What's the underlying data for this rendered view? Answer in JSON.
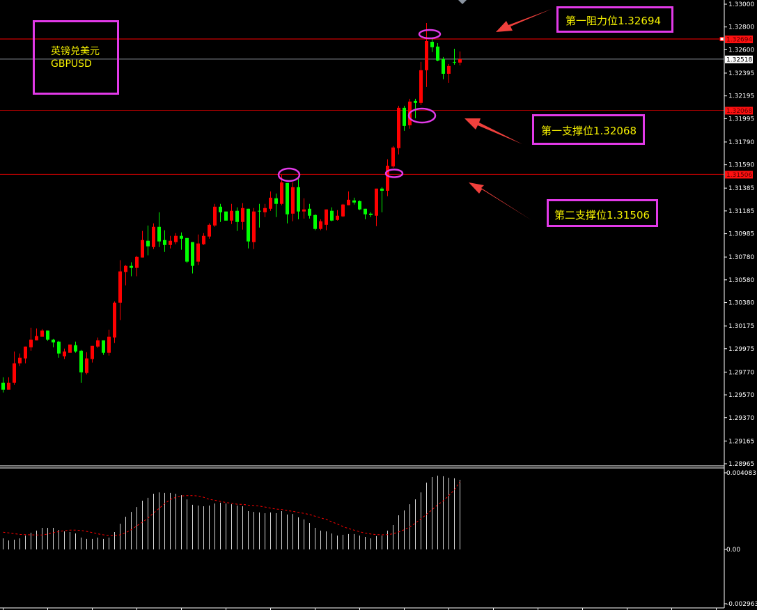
{
  "symbol_label": {
    "name_cn": "英镑兑美元",
    "symbol": "GBPUSD"
  },
  "annotations": {
    "resistance1": "第一阻力位1.32694",
    "support1": "第一支撑位1.32068",
    "support2": "第二支撑位1.31506"
  },
  "colors": {
    "background": "#000000",
    "bull_candle": "#ff0000",
    "bear_candle": "#00ff00",
    "resistance_line": "#ff0000",
    "support_line": "#d00000",
    "current_price_line": "#8a8f99",
    "highlight_circle": "#e23ae8",
    "annotation_text": "#f5f000",
    "arrow": "#f0403c",
    "macd_histogram": "#d8d8d8",
    "macd_signal": "#ff0000"
  },
  "chart_data": [
    {
      "type": "candlestick",
      "title": "",
      "ylim": [
        1.28965,
        1.33
      ],
      "y_ticks": [
        "1.33000",
        "1.32800",
        "1.32600",
        "1.32395",
        "1.32195",
        "1.31995",
        "1.31790",
        "1.31590",
        "1.31385",
        "1.31185",
        "1.30985",
        "1.30780",
        "1.30580",
        "1.30380",
        "1.30175",
        "1.29975",
        "1.29770",
        "1.29570",
        "1.29370",
        "1.29165",
        "1.28965"
      ],
      "price_tags": [
        {
          "value": "1.32694",
          "style": "red"
        },
        {
          "value": "1.32518",
          "style": "white"
        },
        {
          "value": "1.32068",
          "style": "red"
        },
        {
          "value": "1.31506",
          "style": "red"
        }
      ],
      "levels": {
        "resistance1": 1.32694,
        "current": 1.32518,
        "support1": 1.32068,
        "support2": 1.31506
      },
      "ohlc_format": [
        "open",
        "high",
        "low",
        "close"
      ],
      "candles": [
        [
          1.29676,
          1.29725,
          1.29591,
          1.29615
        ],
        [
          1.29615,
          1.29725,
          1.29615,
          1.29676
        ],
        [
          1.29676,
          1.29951,
          1.29658,
          1.29847
        ],
        [
          1.29847,
          1.29933,
          1.29823,
          1.29896
        ],
        [
          1.2989,
          1.29994,
          1.29847,
          1.29994
        ],
        [
          1.29988,
          1.30159,
          1.29957,
          1.30055
        ],
        [
          1.30049,
          1.30153,
          1.30049,
          1.30086
        ],
        [
          1.3008,
          1.30147,
          1.3008,
          1.30135
        ],
        [
          1.30135,
          1.30135,
          1.30043,
          1.30055
        ],
        [
          1.30055,
          1.30061,
          1.29988,
          1.30031
        ],
        [
          1.30037,
          1.30043,
          1.29896,
          1.29933
        ],
        [
          1.29909,
          1.29976,
          1.29884,
          1.29951
        ],
        [
          1.29939,
          1.30012,
          1.29939,
          1.30012
        ],
        [
          1.30006,
          1.30037,
          1.29939,
          1.29951
        ],
        [
          1.29957,
          1.29964,
          1.29676,
          1.29768
        ],
        [
          1.29762,
          1.29945,
          1.2975,
          1.2989
        ],
        [
          1.29884,
          1.3,
          1.29854,
          1.3
        ],
        [
          1.29994,
          1.30074,
          1.29982,
          1.30049
        ],
        [
          1.30049,
          1.30049,
          1.29921,
          1.29939
        ],
        [
          1.29939,
          1.30141,
          1.29915,
          1.3008
        ],
        [
          1.30074,
          1.30391,
          1.30025,
          1.30379
        ],
        [
          1.30379,
          1.30752,
          1.30226,
          1.30654
        ],
        [
          1.30648,
          1.30709,
          1.30532,
          1.30703
        ],
        [
          1.30703,
          1.30734,
          1.30611,
          1.30685
        ],
        [
          1.30685,
          1.30789,
          1.30611,
          1.30782
        ],
        [
          1.30776,
          1.31009,
          1.30776,
          1.30929
        ],
        [
          1.30923,
          1.31057,
          1.30795,
          1.30874
        ],
        [
          1.30868,
          1.31076,
          1.3085,
          1.31045
        ],
        [
          1.31045,
          1.31173,
          1.30868,
          1.30917
        ],
        [
          1.30929,
          1.31015,
          1.30825,
          1.30886
        ],
        [
          1.30886,
          1.30966,
          1.30856,
          1.30923
        ],
        [
          1.30911,
          1.3099,
          1.30892,
          1.30966
        ],
        [
          1.30966,
          1.30996,
          1.30844,
          1.30941
        ],
        [
          1.30947,
          1.30947,
          1.30727,
          1.3074
        ],
        [
          1.30911,
          1.30911,
          1.30636,
          1.30703
        ],
        [
          1.3074,
          1.30978,
          1.30709,
          1.30899
        ],
        [
          1.30892,
          1.3099,
          1.30886,
          1.30966
        ],
        [
          1.3096,
          1.31076,
          1.30941,
          1.31063
        ],
        [
          1.31057,
          1.31247,
          1.31045,
          1.31222
        ],
        [
          1.31222,
          1.31247,
          1.31088,
          1.31173
        ],
        [
          1.3118,
          1.3118,
          1.311,
          1.311
        ],
        [
          1.311,
          1.31247,
          1.3107,
          1.31186
        ],
        [
          1.31186,
          1.31216,
          1.31009,
          1.31088
        ],
        [
          1.31088,
          1.31253,
          1.31021,
          1.3121
        ],
        [
          1.31204,
          1.31204,
          1.30856,
          1.30917
        ],
        [
          1.30911,
          1.3121,
          1.3085,
          1.3118
        ],
        [
          1.31186,
          1.31247,
          1.31039,
          1.31186
        ],
        [
          1.31173,
          1.31247,
          1.31131,
          1.3121
        ],
        [
          1.31204,
          1.31356,
          1.31186,
          1.31301
        ],
        [
          1.31296,
          1.31338,
          1.31131,
          1.31247
        ],
        [
          1.31247,
          1.31503,
          1.31235,
          1.31436
        ],
        [
          1.3143,
          1.3143,
          1.31076,
          1.31155
        ],
        [
          1.31161,
          1.31436,
          1.31094,
          1.31393
        ],
        [
          1.31393,
          1.31473,
          1.31112,
          1.3118
        ],
        [
          1.3118,
          1.31296,
          1.31118,
          1.31198
        ],
        [
          1.31204,
          1.31247,
          1.31118,
          1.31143
        ],
        [
          1.31149,
          1.31155,
          1.31015,
          1.31027
        ],
        [
          1.31027,
          1.31112,
          1.31015,
          1.31094
        ],
        [
          1.31063,
          1.31198,
          1.31015,
          1.31198
        ],
        [
          1.31186,
          1.31216,
          1.31094,
          1.311
        ],
        [
          1.31106,
          1.31192,
          1.311,
          1.31143
        ],
        [
          1.31137,
          1.31247,
          1.31131,
          1.31241
        ],
        [
          1.31235,
          1.31356,
          1.31235,
          1.31283
        ],
        [
          1.31277,
          1.31301,
          1.31241,
          1.31259
        ],
        [
          1.31271,
          1.31277,
          1.31192,
          1.31198
        ],
        [
          1.31204,
          1.31204,
          1.31112,
          1.31155
        ],
        [
          1.31161,
          1.31173,
          1.31131,
          1.31149
        ],
        [
          1.31143,
          1.31381,
          1.31051,
          1.31381
        ],
        [
          1.31381,
          1.31393,
          1.31173,
          1.31362
        ],
        [
          1.31362,
          1.31638,
          1.31314,
          1.31582
        ],
        [
          1.31576,
          1.31754,
          1.31564,
          1.31742
        ],
        [
          1.31736,
          1.32108,
          1.31681,
          1.3209
        ],
        [
          1.3209,
          1.32108,
          1.31888,
          1.31931
        ],
        [
          1.31937,
          1.32169,
          1.31907,
          1.32145
        ],
        [
          1.32151,
          1.32169,
          1.31998,
          1.32133
        ],
        [
          1.32133,
          1.32493,
          1.32114,
          1.3242
        ],
        [
          1.3242,
          1.32835,
          1.32273,
          1.32676
        ],
        [
          1.3267,
          1.32707,
          1.32579,
          1.32622
        ],
        [
          1.32628,
          1.32658,
          1.32499,
          1.32505
        ],
        [
          1.32518,
          1.32536,
          1.32341,
          1.32389
        ],
        [
          1.32389,
          1.32475,
          1.3231,
          1.32457
        ],
        [
          1.32493,
          1.32609,
          1.32469,
          1.32493
        ],
        [
          1.32487,
          1.32585,
          1.32463,
          1.32518
        ]
      ]
    },
    {
      "type": "bar",
      "ylim": [
        -0.002963,
        0.004083
      ],
      "y_ticks": [
        "0.004083",
        "0.00",
        "-0.002963"
      ],
      "histogram": [
        0.00059,
        0.00048,
        0.00052,
        0.00059,
        0.00074,
        0.00089,
        0.001,
        0.00115,
        0.00115,
        0.00115,
        0.00104,
        0.00096,
        0.00093,
        0.00085,
        0.00063,
        0.00056,
        0.00056,
        0.00063,
        0.00056,
        0.00063,
        0.00093,
        0.00137,
        0.00174,
        0.002,
        0.00226,
        0.0026,
        0.00275,
        0.00297,
        0.00304,
        0.00301,
        0.00301,
        0.00297,
        0.00289,
        0.00267,
        0.00238,
        0.00234,
        0.0023,
        0.00234,
        0.00245,
        0.00249,
        0.00245,
        0.00241,
        0.00234,
        0.0023,
        0.00204,
        0.002,
        0.00197,
        0.00193,
        0.00197,
        0.00193,
        0.00204,
        0.00186,
        0.00189,
        0.00171,
        0.0016,
        0.00141,
        0.00115,
        0.001,
        0.00096,
        0.00085,
        0.00074,
        0.00078,
        0.00082,
        0.00082,
        0.00074,
        0.00067,
        0.00059,
        0.00071,
        0.00074,
        0.001,
        0.0013,
        0.00182,
        0.00208,
        0.00241,
        0.00267,
        0.00304,
        0.00356,
        0.00386,
        0.00393,
        0.0039,
        0.00382,
        0.00379,
        0.00371
      ],
      "signal": [
        0.00092,
        0.00088,
        0.00084,
        0.0008,
        0.00079,
        0.00078,
        0.00077,
        0.00077,
        0.00082,
        0.00089,
        0.00095,
        0.001,
        0.00103,
        0.00103,
        0.00101,
        0.00096,
        0.0009,
        0.00083,
        0.00078,
        0.00074,
        0.00074,
        0.00078,
        0.00089,
        0.00105,
        0.00126,
        0.00145,
        0.00167,
        0.00194,
        0.00219,
        0.00244,
        0.00266,
        0.00278,
        0.00285,
        0.00287,
        0.00287,
        0.00285,
        0.00278,
        0.00267,
        0.00262,
        0.00256,
        0.0025,
        0.00246,
        0.00241,
        0.0024,
        0.00236,
        0.00234,
        0.00231,
        0.00226,
        0.0022,
        0.00215,
        0.00213,
        0.00207,
        0.00203,
        0.00198,
        0.00192,
        0.00186,
        0.00177,
        0.00168,
        0.0016,
        0.00147,
        0.00135,
        0.00122,
        0.00111,
        0.00103,
        0.00094,
        0.00087,
        0.00082,
        0.00079,
        0.00078,
        0.00079,
        0.00083,
        0.00093,
        0.00105,
        0.0012,
        0.0014,
        0.00163,
        0.00187,
        0.00212,
        0.00238,
        0.00259,
        0.00287,
        0.00318,
        0.00361
      ]
    }
  ]
}
